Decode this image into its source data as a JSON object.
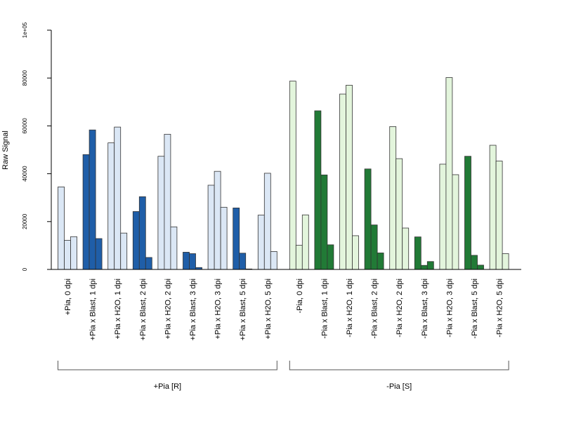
{
  "chart_data": {
    "type": "bar",
    "ylabel": "Raw Signal",
    "ylim": [
      0,
      100000
    ],
    "y_ticks": [
      0,
      20000,
      40000,
      60000,
      80000,
      100000
    ],
    "y_tick_labels": [
      "0",
      "20000",
      "40000",
      "60000",
      "80000",
      "1e+05"
    ],
    "grid": false,
    "legend": "none",
    "colors": {
      "resistant_light": "#dbe7f5",
      "resistant_dark": "#1f5ea8",
      "susceptible_light": "#e3f5dc",
      "susceptible_dark": "#217a36",
      "bar_edge": "#333333",
      "axis": "#000000"
    },
    "groups": [
      {
        "label": "+Pia [R]",
        "categories": [
          {
            "label": "+Pia, 0 dpi",
            "shade": "light",
            "values": [
              34500,
              12200,
              13700
            ]
          },
          {
            "label": "+Pia x Blast, 1 dpi",
            "shade": "dark",
            "values": [
              48000,
              58300,
              12900
            ]
          },
          {
            "label": "+Pia x H2O, 1 dpi",
            "shade": "light",
            "values": [
              52900,
              59500,
              15200
            ]
          },
          {
            "label": "+Pia x Blast, 2 dpi",
            "shade": "dark",
            "values": [
              24200,
              30400,
              5000
            ]
          },
          {
            "label": "+Pia x H2O, 2 dpi",
            "shade": "light",
            "values": [
              47300,
              56500,
              17800
            ]
          },
          {
            "label": "+Pia x Blast, 3 dpi",
            "shade": "dark",
            "values": [
              7200,
              6600,
              800
            ]
          },
          {
            "label": "+Pia x H2O, 3 dpi",
            "shade": "light",
            "values": [
              35200,
              41000,
              26000
            ]
          },
          {
            "label": "+Pia x Blast, 5 dpi",
            "shade": "dark",
            "values": [
              25700,
              6800,
              200
            ]
          },
          {
            "label": "+Pia x H2O, 5 dpi",
            "shade": "light",
            "values": [
              22700,
              40200,
              7500
            ]
          }
        ]
      },
      {
        "label": "-Pia [S]",
        "categories": [
          {
            "label": "-Pia, 0 dpi",
            "shade": "light",
            "values": [
              78700,
              10100,
              22800
            ]
          },
          {
            "label": "-Pia x Blast, 1 dpi",
            "shade": "dark",
            "values": [
              66300,
              39500,
              10300
            ]
          },
          {
            "label": "-Pia x H2O, 1 dpi",
            "shade": "light",
            "values": [
              73300,
              77000,
              14100
            ]
          },
          {
            "label": "-Pia x Blast, 2 dpi",
            "shade": "dark",
            "values": [
              42000,
              18600,
              6900
            ]
          },
          {
            "label": "-Pia x H2O, 2 dpi",
            "shade": "light",
            "values": [
              59700,
              46300,
              17300
            ]
          },
          {
            "label": "-Pia x Blast, 3 dpi",
            "shade": "dark",
            "values": [
              13600,
              1700,
              3300
            ]
          },
          {
            "label": "-Pia x H2O, 3 dpi",
            "shade": "light",
            "values": [
              44000,
              80200,
              39600
            ]
          },
          {
            "label": "-Pia x Blast, 5 dpi",
            "shade": "dark",
            "values": [
              47300,
              5900,
              1800
            ]
          },
          {
            "label": "-Pia x H2O, 5 dpi",
            "shade": "light",
            "values": [
              51900,
              45300,
              6600
            ]
          }
        ]
      }
    ]
  }
}
